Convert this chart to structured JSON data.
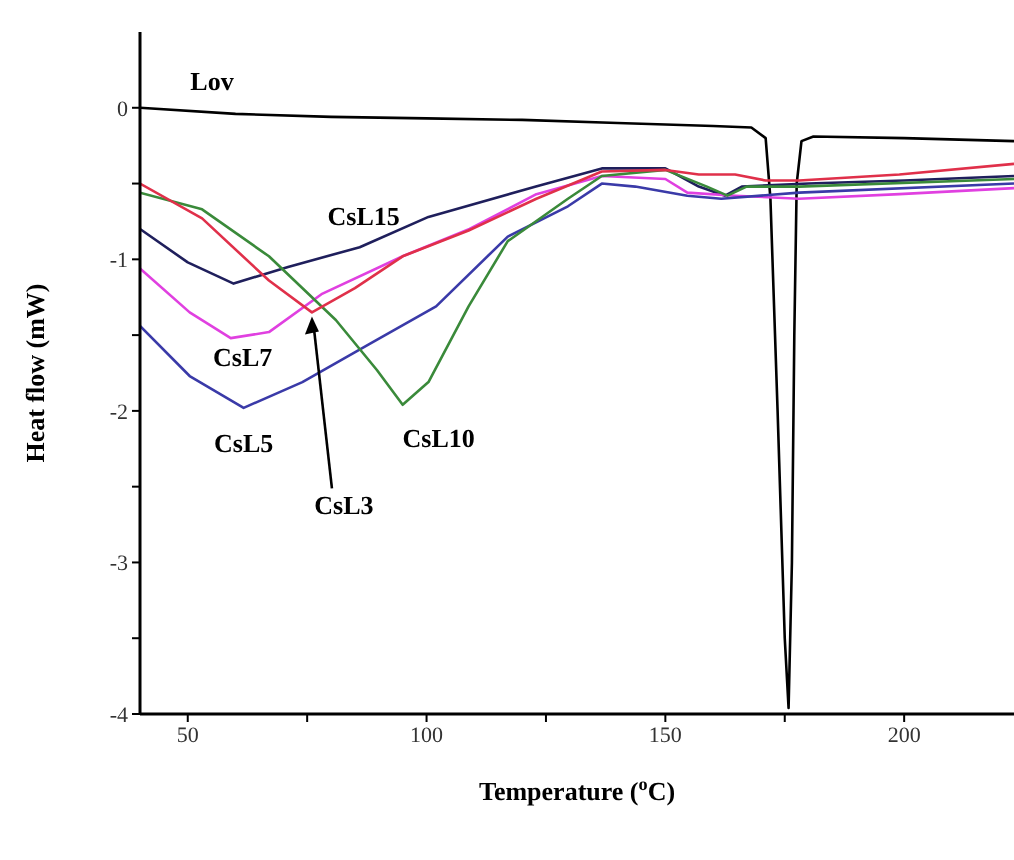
{
  "chart_data": {
    "type": "line",
    "xlabel": "Temperature ($^{o}$C)",
    "ylabel": "Heat flow (mW)",
    "xlim": [
      40,
      223
    ],
    "ylim": [
      -4,
      0.5
    ],
    "xticks": [
      50,
      {
        "value": 75,
        "label": null
      },
      100,
      {
        "value": 125,
        "label": null
      },
      150,
      {
        "value": 175,
        "label": null
      },
      200
    ],
    "yticks": [
      -4,
      {
        "value": -3.5,
        "label": null
      },
      -3,
      {
        "value": -2.5,
        "label": null
      },
      -2,
      {
        "value": -1.5,
        "label": null
      },
      -1,
      {
        "value": -0.5,
        "label": null
      },
      0
    ],
    "grid": false,
    "legend": false,
    "marker": "none",
    "line_style": "solid",
    "series": [
      {
        "name": "Lov",
        "color": "#000000",
        "x": [
          40,
          60,
          80,
          100,
          120,
          140,
          160,
          168,
          171,
          172,
          173.5,
          175,
          175.8,
          176.5,
          177,
          177.5,
          178.5,
          181,
          200,
          223
        ],
        "values": [
          0,
          -0.04,
          -0.06,
          -0.07,
          -0.08,
          -0.1,
          -0.12,
          -0.13,
          -0.2,
          -0.6,
          -2,
          -3.5,
          -3.96,
          -3,
          -1.5,
          -0.5,
          -0.22,
          -0.19,
          -0.2,
          -0.22
        ]
      },
      {
        "name": "CsL15",
        "color": "#1f1f5c",
        "x": [
          40,
          50,
          59.6,
          71,
          86,
          100.4,
          122.9,
          136.7,
          150,
          157,
          162.5,
          166,
          180,
          200,
          223
        ],
        "values": [
          -0.8,
          -1.02,
          -1.16,
          -1.05,
          -0.92,
          -0.72,
          -0.52,
          -0.4,
          -0.4,
          -0.52,
          -0.58,
          -0.52,
          -0.5,
          -0.48,
          -0.45
        ]
      },
      {
        "name": "CsL7",
        "color": "#e040e0",
        "x": [
          40,
          50.4,
          59,
          67,
          78,
          95,
          109,
          123,
          136.7,
          150,
          154.6,
          164.6,
          178,
          199,
          223
        ],
        "values": [
          -1.06,
          -1.35,
          -1.52,
          -1.48,
          -1.23,
          -0.98,
          -0.8,
          -0.57,
          -0.45,
          -0.47,
          -0.56,
          -0.58,
          -0.6,
          -0.57,
          -0.53
        ]
      },
      {
        "name": "CsL5",
        "color": "#3a3aa8",
        "x": [
          40,
          50.4,
          61.7,
          74,
          88,
          102,
          117,
          129.6,
          136.7,
          143.7,
          154.6,
          161.7,
          178,
          223
        ],
        "values": [
          -1.44,
          -1.77,
          -1.98,
          -1.81,
          -1.56,
          -1.31,
          -0.85,
          -0.65,
          -0.5,
          -0.52,
          -0.58,
          -0.6,
          -0.56,
          -0.5
        ]
      },
      {
        "name": "CsL10",
        "color": "#3a8a3a",
        "x": [
          40,
          53,
          67,
          81,
          89.6,
          95,
          100.4,
          108.8,
          117,
          129.6,
          136.7,
          150,
          158.7,
          163,
          167,
          178,
          223
        ],
        "values": [
          -0.56,
          -0.67,
          -0.98,
          -1.4,
          -1.73,
          -1.96,
          -1.81,
          -1.31,
          -0.88,
          -0.6,
          -0.45,
          -0.41,
          -0.52,
          -0.58,
          -0.52,
          -0.52,
          -0.47
        ]
      },
      {
        "name": "CsL3",
        "color": "#e0304a",
        "x": [
          40,
          53,
          67,
          76,
          85,
          95,
          108.8,
          123,
          136.7,
          150,
          157,
          164.6,
          171,
          178,
          199,
          223
        ],
        "values": [
          -0.5,
          -0.73,
          -1.14,
          -1.35,
          -1.19,
          -0.98,
          -0.81,
          -0.6,
          -0.42,
          -0.41,
          -0.44,
          -0.44,
          -0.48,
          -0.48,
          -0.44,
          -0.37
        ]
      }
    ]
  }
}
